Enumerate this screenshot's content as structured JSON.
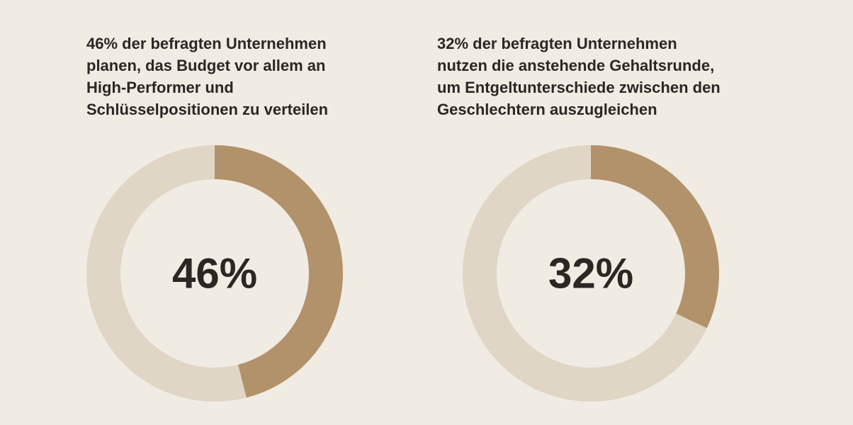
{
  "colors": {
    "background": "#f0ebe3",
    "track": "#e0d6c6",
    "highlight": "#b2926a",
    "text": "#2a2725"
  },
  "chart_data": [
    {
      "type": "pie",
      "variant": "donut",
      "title_lines": [
        "46% der befragten Unternehmen",
        "planen, das Budget vor allem an",
        "High-Performer und",
        "Schlüsselpositionen zu verteilen"
      ],
      "value": 46,
      "center_label": "46%",
      "slices": [
        {
          "label": "",
          "value": 46
        },
        {
          "label": "",
          "value": 54
        }
      ]
    },
    {
      "type": "pie",
      "variant": "donut",
      "title_lines": [
        "32% der befragten Unternehmen",
        "nutzen die anstehende Gehaltsrunde,",
        "um Entgeltunterschiede zwischen den",
        "Geschlechtern auszugleichen"
      ],
      "value": 32,
      "center_label": "32%",
      "slices": [
        {
          "label": "",
          "value": 32
        },
        {
          "label": "",
          "value": 68
        }
      ]
    }
  ]
}
